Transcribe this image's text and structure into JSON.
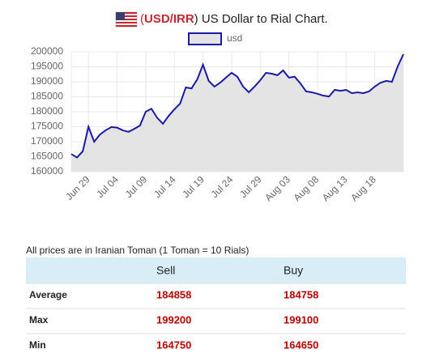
{
  "header": {
    "title_parts": [
      "(",
      "USD/IRR",
      ") US Dollar to Rial Chart."
    ]
  },
  "chart_data": {
    "type": "line",
    "categories": [
      null,
      null,
      null,
      "Jun 29",
      null,
      null,
      null,
      null,
      "Jul 04",
      null,
      null,
      null,
      null,
      "Jul 09",
      null,
      null,
      null,
      null,
      "Jul 14",
      null,
      null,
      null,
      null,
      "Jul 19",
      null,
      null,
      null,
      null,
      "Jul 24",
      null,
      null,
      null,
      null,
      "Jul 29",
      null,
      null,
      null,
      null,
      "Aug 03",
      null,
      null,
      null,
      null,
      "Aug 08",
      null,
      null,
      null,
      null,
      "Aug 13",
      null,
      null,
      null,
      null,
      "Aug 18",
      null,
      null,
      null,
      null,
      null
    ],
    "series": [
      {
        "name": "usd",
        "color": "#1a1aa6",
        "fill": "#e4e4e4",
        "values": [
          165900,
          164750,
          166800,
          175000,
          170000,
          172400,
          173800,
          174900,
          174700,
          173800,
          173300,
          174300,
          175400,
          180000,
          181000,
          178000,
          176000,
          178600,
          180800,
          182700,
          188100,
          187800,
          190800,
          195700,
          190300,
          188400,
          189700,
          191400,
          193000,
          191700,
          188400,
          186500,
          188400,
          190500,
          193000,
          192700,
          192200,
          193800,
          191400,
          191700,
          189500,
          186800,
          186500,
          186000,
          185400,
          185100,
          187300,
          187000,
          187300,
          186200,
          186500,
          186200,
          186800,
          188400,
          189700,
          190300,
          190000,
          195100,
          199200
        ]
      }
    ],
    "ylim": [
      160000,
      200000
    ],
    "yticks": [
      160000,
      165000,
      170000,
      175000,
      180000,
      185000,
      190000,
      195000,
      200000
    ],
    "grid": true,
    "legend": "top"
  },
  "table": {
    "note": "All prices are in Iranian Toman (1 Toman = 10 Rials)",
    "header": [
      "Sell",
      "Buy"
    ],
    "rows": [
      [
        "Average",
        184858,
        184758
      ],
      [
        "Max",
        199200,
        199100
      ],
      [
        "Min",
        164750,
        164650
      ]
    ]
  }
}
